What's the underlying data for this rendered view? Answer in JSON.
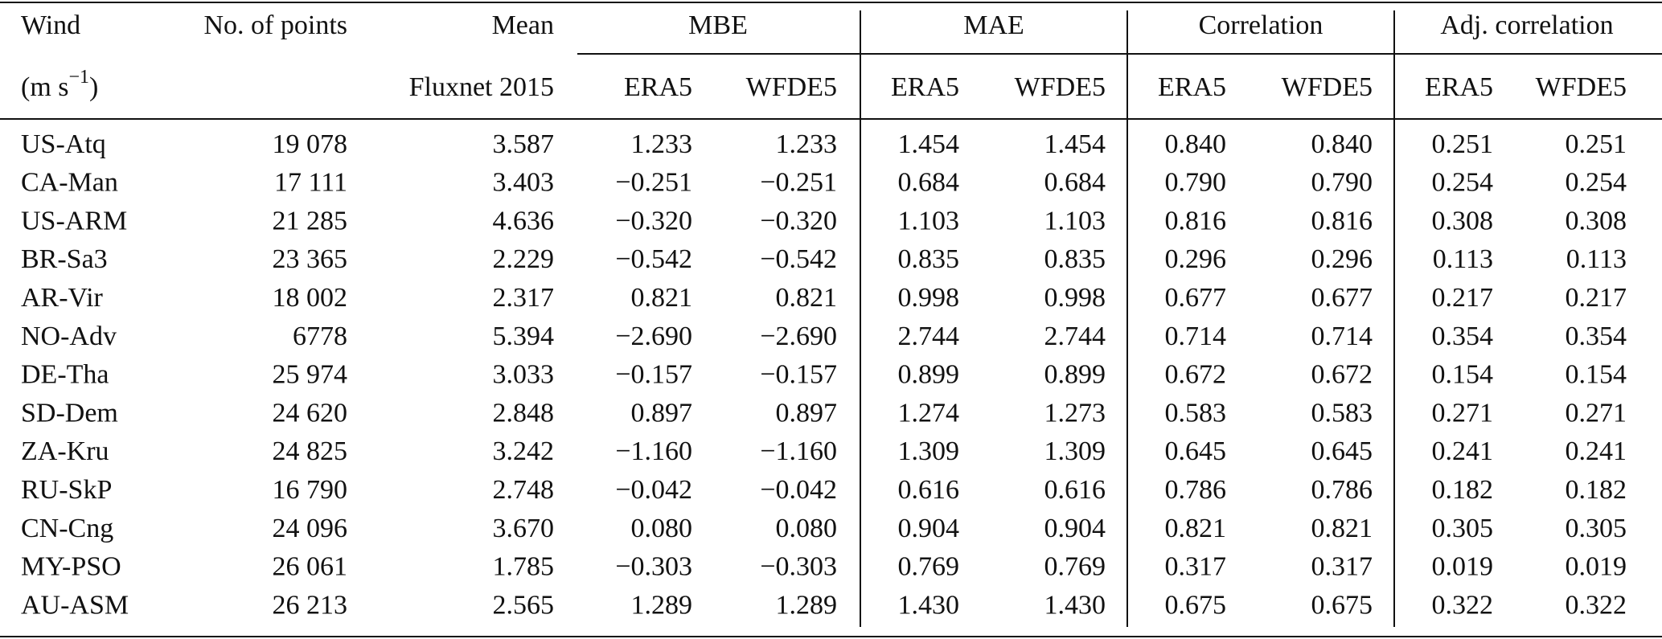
{
  "table": {
    "header": {
      "wind": "Wind",
      "unit": {
        "open": "(m s",
        "sup": "−1",
        "close": ")"
      },
      "points": "No. of points",
      "mean": "Mean",
      "mean_source": "Fluxnet 2015",
      "groups": [
        {
          "label": "MBE",
          "sub": [
            "ERA5",
            "WFDE5"
          ]
        },
        {
          "label": "MAE",
          "sub": [
            "ERA5",
            "WFDE5"
          ]
        },
        {
          "label": "Correlation",
          "sub": [
            "ERA5",
            "WFDE5"
          ]
        },
        {
          "label": "Adj. correlation",
          "sub": [
            "ERA5",
            "WFDE5"
          ]
        }
      ]
    },
    "rows": [
      [
        "US-Atq",
        "19 078",
        "3.587",
        "1.233",
        "1.233",
        "1.454",
        "1.454",
        "0.840",
        "0.840",
        "0.251",
        "0.251"
      ],
      [
        "CA-Man",
        "17 111",
        "3.403",
        "−0.251",
        "−0.251",
        "0.684",
        "0.684",
        "0.790",
        "0.790",
        "0.254",
        "0.254"
      ],
      [
        "US-ARM",
        "21 285",
        "4.636",
        "−0.320",
        "−0.320",
        "1.103",
        "1.103",
        "0.816",
        "0.816",
        "0.308",
        "0.308"
      ],
      [
        "BR-Sa3",
        "23 365",
        "2.229",
        "−0.542",
        "−0.542",
        "0.835",
        "0.835",
        "0.296",
        "0.296",
        "0.113",
        "0.113"
      ],
      [
        "AR-Vir",
        "18 002",
        "2.317",
        "0.821",
        "0.821",
        "0.998",
        "0.998",
        "0.677",
        "0.677",
        "0.217",
        "0.217"
      ],
      [
        "NO-Adv",
        "6778",
        "5.394",
        "−2.690",
        "−2.690",
        "2.744",
        "2.744",
        "0.714",
        "0.714",
        "0.354",
        "0.354"
      ],
      [
        "DE-Tha",
        "25 974",
        "3.033",
        "−0.157",
        "−0.157",
        "0.899",
        "0.899",
        "0.672",
        "0.672",
        "0.154",
        "0.154"
      ],
      [
        "SD-Dem",
        "24 620",
        "2.848",
        "0.897",
        "0.897",
        "1.274",
        "1.273",
        "0.583",
        "0.583",
        "0.271",
        "0.271"
      ],
      [
        "ZA-Kru",
        "24 825",
        "3.242",
        "−1.160",
        "−1.160",
        "1.309",
        "1.309",
        "0.645",
        "0.645",
        "0.241",
        "0.241"
      ],
      [
        "RU-SkP",
        "16 790",
        "2.748",
        "−0.042",
        "−0.042",
        "0.616",
        "0.616",
        "0.786",
        "0.786",
        "0.182",
        "0.182"
      ],
      [
        "CN-Cng",
        "24 096",
        "3.670",
        "0.080",
        "0.080",
        "0.904",
        "0.904",
        "0.821",
        "0.821",
        "0.305",
        "0.305"
      ],
      [
        "MY-PSO",
        "26 061",
        "1.785",
        "−0.303",
        "−0.303",
        "0.769",
        "0.769",
        "0.317",
        "0.317",
        "0.019",
        "0.019"
      ],
      [
        "AU-ASM",
        "26 213",
        "2.565",
        "1.289",
        "1.289",
        "1.430",
        "1.430",
        "0.675",
        "0.675",
        "0.322",
        "0.322"
      ]
    ]
  }
}
